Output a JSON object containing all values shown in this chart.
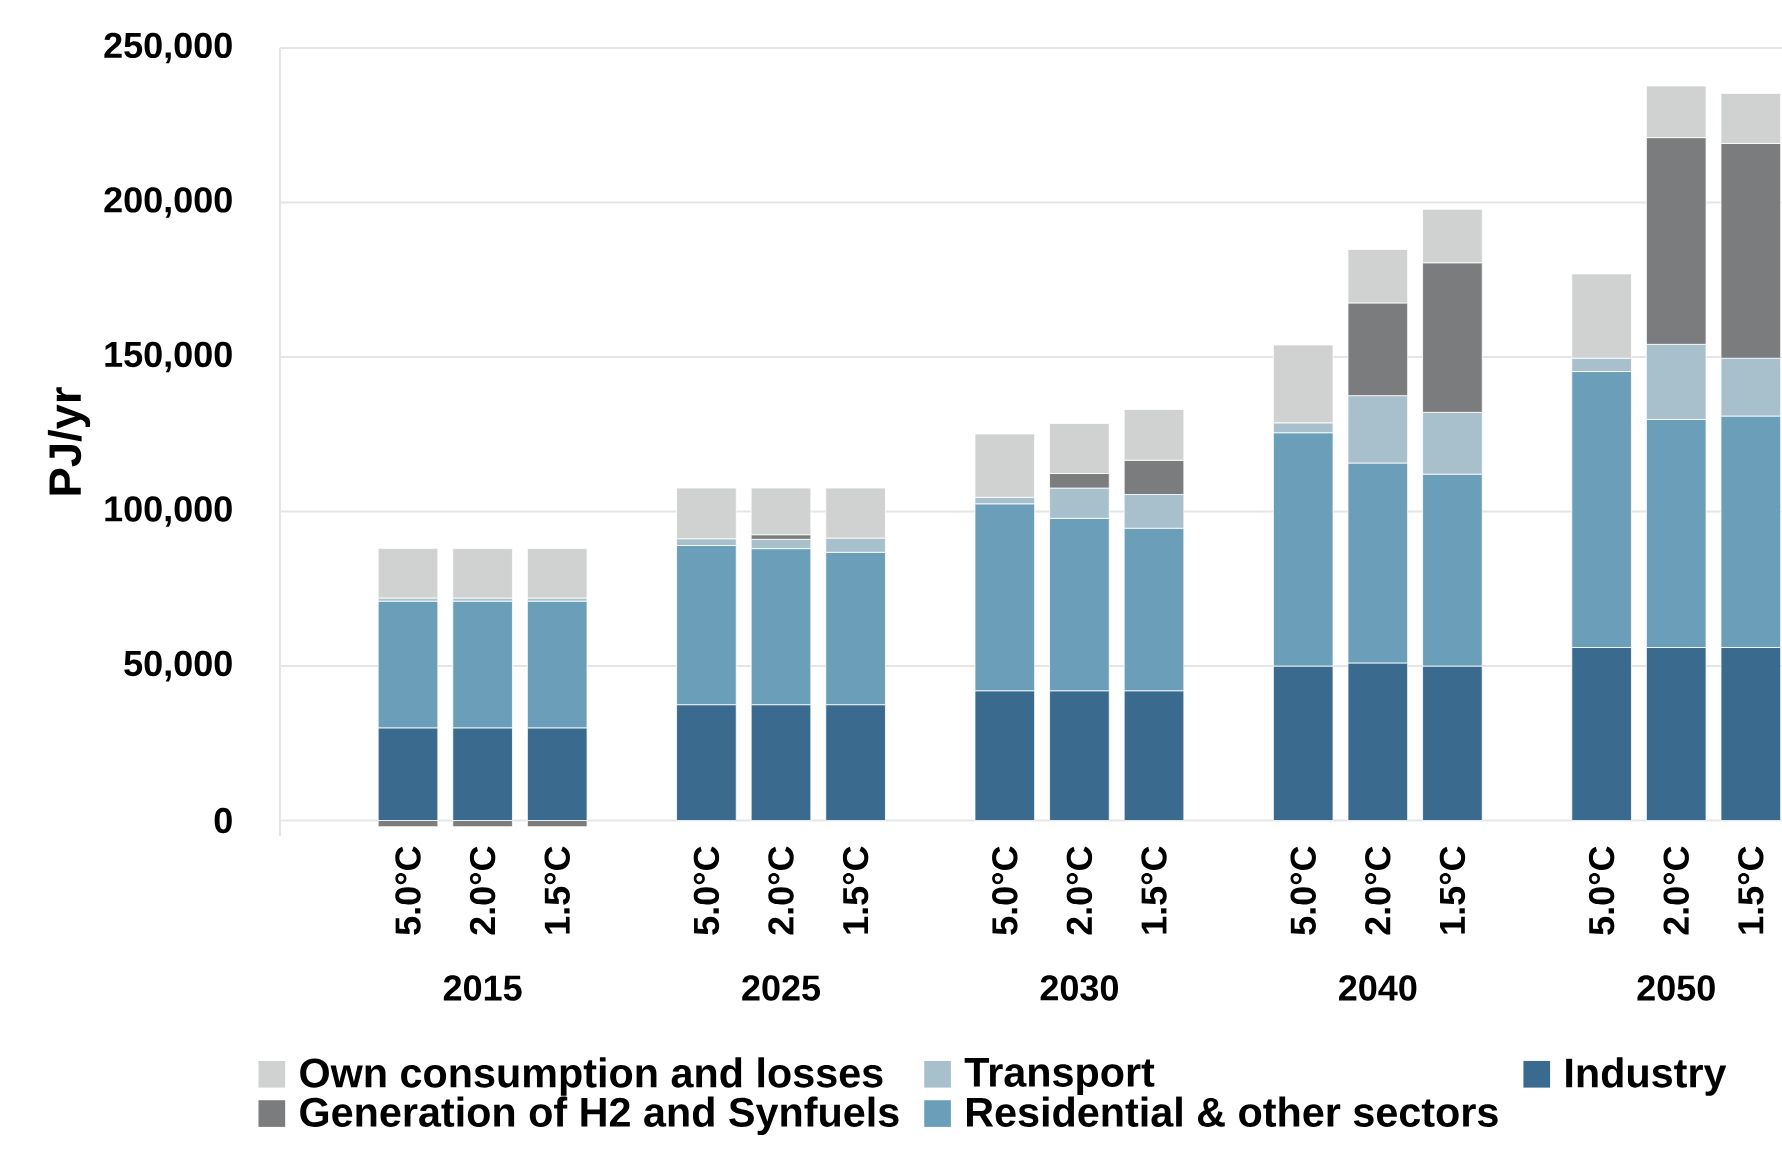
{
  "chart_data": {
    "type": "bar",
    "stacked": true,
    "ylabel": "PJ/yr",
    "categories": [
      "5.0°C",
      "2.0°C",
      "1.5°C",
      null,
      "5.0°C",
      "2.0°C",
      "1.5°C",
      null,
      "5.0°C",
      "2.0°C",
      "1.5°C",
      null,
      "5.0°C",
      "2.0°C",
      "1.5°C",
      null,
      "5.0°C",
      "2.0°C",
      "1.5°C"
    ],
    "annotations": [
      "2015",
      "2025",
      "2030",
      "2040",
      "2050"
    ],
    "series": [
      {
        "name": "Industry",
        "color": "#3a6b8f",
        "values": [
          30000,
          30000,
          30000,
          null,
          37500,
          37500,
          37500,
          null,
          42000,
          42000,
          42000,
          null,
          50000,
          51000,
          50000,
          null,
          56000,
          56000,
          56000
        ]
      },
      {
        "name": "Residential & other sectors",
        "color": "#6b9fb9",
        "values": [
          41000,
          41000,
          41000,
          null,
          51500,
          50500,
          49300,
          null,
          60500,
          55800,
          52600,
          null,
          75500,
          64700,
          62100,
          null,
          89300,
          73800,
          74900
        ]
      },
      {
        "name": "Transport",
        "color": "#a8c0cc",
        "values": [
          1000,
          1000,
          1000,
          null,
          2200,
          3000,
          4600,
          null,
          2100,
          9800,
          10900,
          null,
          3200,
          21800,
          20000,
          null,
          4300,
          24300,
          18700
        ]
      },
      {
        "name": "Generation of H2 and Synfuels",
        "color": "#7b7c7e",
        "values": [
          -2000,
          -2000,
          -2000,
          null,
          0,
          1500,
          0,
          null,
          0,
          4700,
          11100,
          null,
          0,
          30000,
          48400,
          null,
          0,
          66900,
          69500
        ]
      },
      {
        "name": "Own consumption and losses",
        "color": "#d0d1d1",
        "values": [
          16000,
          16000,
          16000,
          null,
          16400,
          15100,
          16200,
          null,
          20500,
          16200,
          16400,
          null,
          25200,
          17300,
          17300,
          null,
          27300,
          16700,
          16200
        ]
      }
    ],
    "ylim": [
      -5000,
      250000
    ],
    "yticks": [
      0,
      {
        "value": 50000,
        "label": "50,000"
      },
      {
        "value": 100000,
        "label": "100,000"
      },
      {
        "value": 150000,
        "label": "150,000"
      },
      {
        "value": 200000,
        "label": "200,000"
      },
      {
        "value": 250000,
        "label": "250,000"
      }
    ],
    "grid": "y",
    "legend": "bottom"
  }
}
